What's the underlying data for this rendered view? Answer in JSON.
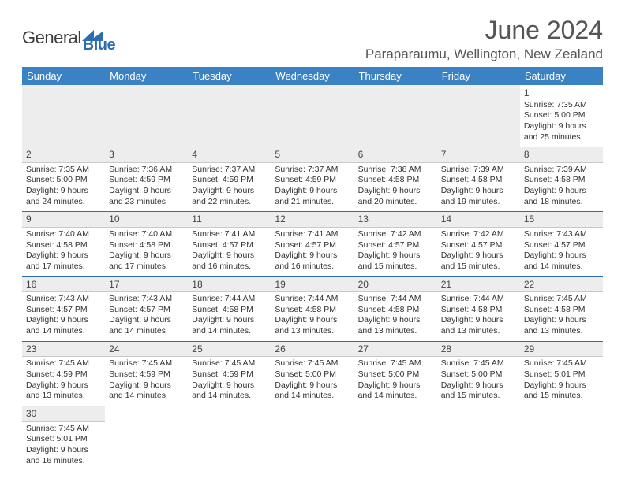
{
  "logo": {
    "text1": "General",
    "text2": "Blue"
  },
  "title": "June 2024",
  "location": "Paraparaumu, Wellington, New Zealand",
  "colors": {
    "header_bg": "#3b82c4",
    "header_text": "#ffffff",
    "band_bg": "#ededed",
    "rule": "#2a6db3",
    "text": "#333333",
    "logo_gray": "#3d3d3d",
    "logo_blue": "#2a6db3"
  },
  "weekdays": [
    "Sunday",
    "Monday",
    "Tuesday",
    "Wednesday",
    "Thursday",
    "Friday",
    "Saturday"
  ],
  "weeks": [
    [
      null,
      null,
      null,
      null,
      null,
      null,
      {
        "n": "1",
        "sr": "7:35 AM",
        "ss": "5:00 PM",
        "dl": "9 hours and 25 minutes."
      }
    ],
    [
      {
        "n": "2",
        "sr": "7:35 AM",
        "ss": "5:00 PM",
        "dl": "9 hours and 24 minutes."
      },
      {
        "n": "3",
        "sr": "7:36 AM",
        "ss": "4:59 PM",
        "dl": "9 hours and 23 minutes."
      },
      {
        "n": "4",
        "sr": "7:37 AM",
        "ss": "4:59 PM",
        "dl": "9 hours and 22 minutes."
      },
      {
        "n": "5",
        "sr": "7:37 AM",
        "ss": "4:59 PM",
        "dl": "9 hours and 21 minutes."
      },
      {
        "n": "6",
        "sr": "7:38 AM",
        "ss": "4:58 PM",
        "dl": "9 hours and 20 minutes."
      },
      {
        "n": "7",
        "sr": "7:39 AM",
        "ss": "4:58 PM",
        "dl": "9 hours and 19 minutes."
      },
      {
        "n": "8",
        "sr": "7:39 AM",
        "ss": "4:58 PM",
        "dl": "9 hours and 18 minutes."
      }
    ],
    [
      {
        "n": "9",
        "sr": "7:40 AM",
        "ss": "4:58 PM",
        "dl": "9 hours and 17 minutes."
      },
      {
        "n": "10",
        "sr": "7:40 AM",
        "ss": "4:58 PM",
        "dl": "9 hours and 17 minutes."
      },
      {
        "n": "11",
        "sr": "7:41 AM",
        "ss": "4:57 PM",
        "dl": "9 hours and 16 minutes."
      },
      {
        "n": "12",
        "sr": "7:41 AM",
        "ss": "4:57 PM",
        "dl": "9 hours and 16 minutes."
      },
      {
        "n": "13",
        "sr": "7:42 AM",
        "ss": "4:57 PM",
        "dl": "9 hours and 15 minutes."
      },
      {
        "n": "14",
        "sr": "7:42 AM",
        "ss": "4:57 PM",
        "dl": "9 hours and 15 minutes."
      },
      {
        "n": "15",
        "sr": "7:43 AM",
        "ss": "4:57 PM",
        "dl": "9 hours and 14 minutes."
      }
    ],
    [
      {
        "n": "16",
        "sr": "7:43 AM",
        "ss": "4:57 PM",
        "dl": "9 hours and 14 minutes."
      },
      {
        "n": "17",
        "sr": "7:43 AM",
        "ss": "4:57 PM",
        "dl": "9 hours and 14 minutes."
      },
      {
        "n": "18",
        "sr": "7:44 AM",
        "ss": "4:58 PM",
        "dl": "9 hours and 14 minutes."
      },
      {
        "n": "19",
        "sr": "7:44 AM",
        "ss": "4:58 PM",
        "dl": "9 hours and 13 minutes."
      },
      {
        "n": "20",
        "sr": "7:44 AM",
        "ss": "4:58 PM",
        "dl": "9 hours and 13 minutes."
      },
      {
        "n": "21",
        "sr": "7:44 AM",
        "ss": "4:58 PM",
        "dl": "9 hours and 13 minutes."
      },
      {
        "n": "22",
        "sr": "7:45 AM",
        "ss": "4:58 PM",
        "dl": "9 hours and 13 minutes."
      }
    ],
    [
      {
        "n": "23",
        "sr": "7:45 AM",
        "ss": "4:59 PM",
        "dl": "9 hours and 13 minutes."
      },
      {
        "n": "24",
        "sr": "7:45 AM",
        "ss": "4:59 PM",
        "dl": "9 hours and 14 minutes."
      },
      {
        "n": "25",
        "sr": "7:45 AM",
        "ss": "4:59 PM",
        "dl": "9 hours and 14 minutes."
      },
      {
        "n": "26",
        "sr": "7:45 AM",
        "ss": "5:00 PM",
        "dl": "9 hours and 14 minutes."
      },
      {
        "n": "27",
        "sr": "7:45 AM",
        "ss": "5:00 PM",
        "dl": "9 hours and 14 minutes."
      },
      {
        "n": "28",
        "sr": "7:45 AM",
        "ss": "5:00 PM",
        "dl": "9 hours and 15 minutes."
      },
      {
        "n": "29",
        "sr": "7:45 AM",
        "ss": "5:01 PM",
        "dl": "9 hours and 15 minutes."
      }
    ],
    [
      {
        "n": "30",
        "sr": "7:45 AM",
        "ss": "5:01 PM",
        "dl": "9 hours and 16 minutes."
      },
      null,
      null,
      null,
      null,
      null,
      null
    ]
  ],
  "labels": {
    "sunrise": "Sunrise: ",
    "sunset": "Sunset: ",
    "daylight": "Daylight: "
  }
}
